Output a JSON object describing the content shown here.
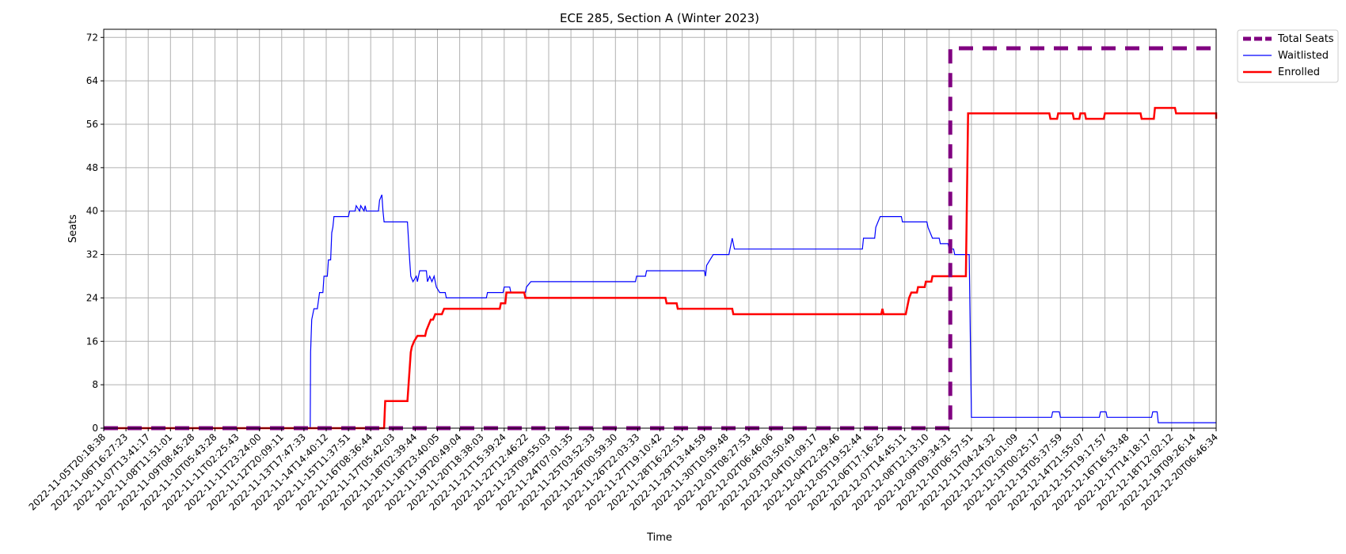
{
  "chart_data": {
    "type": "line",
    "title": "ECE 285, Section A (Winter 2023)",
    "xlabel": "Time",
    "ylabel": "Seats",
    "ylim": [
      0,
      73.5
    ],
    "yticks": [
      0,
      8,
      16,
      24,
      32,
      40,
      48,
      56,
      64,
      72
    ],
    "grid": true,
    "legend_position": "outside-top-right",
    "x_tick_labels": [
      "2022-11-05T20:18:38",
      "2022-11-06T16:27:23",
      "2022-11-07T13:41:17",
      "2022-11-08T11:51:01",
      "2022-11-09T08:45:28",
      "2022-11-10T05:43:28",
      "2022-11-11T02:25:43",
      "2022-11-11T23:24:00",
      "2022-11-12T20:09:11",
      "2022-11-13T17:47:33",
      "2022-11-14T14:40:12",
      "2022-11-15T11:37:51",
      "2022-11-16T08:36:44",
      "2022-11-17T05:42:03",
      "2022-11-18T02:39:44",
      "2022-11-18T23:40:05",
      "2022-11-19T20:49:04",
      "2022-11-20T18:38:03",
      "2022-11-21T15:39:24",
      "2022-11-22T12:46:22",
      "2022-11-23T09:55:03",
      "2022-11-24T07:01:35",
      "2022-11-25T03:52:33",
      "2022-11-26T00:59:30",
      "2022-11-26T22:03:33",
      "2022-11-27T19:10:42",
      "2022-11-28T16:22:51",
      "2022-11-29T13:44:59",
      "2022-11-30T10:59:48",
      "2022-12-01T08:27:53",
      "2022-12-02T06:46:06",
      "2022-12-03T03:50:49",
      "2022-12-04T01:09:17",
      "2022-12-04T22:29:46",
      "2022-12-05T19:52:44",
      "2022-12-06T17:16:25",
      "2022-12-07T14:45:11",
      "2022-12-08T12:13:10",
      "2022-12-09T09:34:31",
      "2022-12-10T06:57:51",
      "2022-12-11T04:24:32",
      "2022-12-12T02:01:09",
      "2022-12-13T00:25:17",
      "2022-12-13T05:37:59",
      "2022-12-14T21:55:07",
      "2022-12-15T19:17:57",
      "2022-12-16T16:53:48",
      "2022-12-17T14:18:17",
      "2022-12-18T12:02:12",
      "2022-12-19T09:26:14",
      "2022-12-20T06:46:34"
    ],
    "x_range": [
      0,
      50
    ],
    "series": [
      {
        "name": "Total Seats",
        "color": "#800080",
        "style": "dashed",
        "points": [
          [
            0,
            0
          ],
          [
            38.05,
            0
          ],
          [
            38.05,
            70
          ],
          [
            50,
            70
          ]
        ]
      },
      {
        "name": "Waitlisted",
        "color": "#0000ff",
        "style": "solid",
        "points": [
          [
            0,
            0
          ],
          [
            9.28,
            0
          ],
          [
            9.3,
            14
          ],
          [
            9.35,
            20
          ],
          [
            9.45,
            22
          ],
          [
            9.6,
            22
          ],
          [
            9.7,
            25
          ],
          [
            9.85,
            25
          ],
          [
            9.9,
            28
          ],
          [
            10.05,
            28
          ],
          [
            10.1,
            31
          ],
          [
            10.2,
            31
          ],
          [
            10.25,
            36
          ],
          [
            10.3,
            37
          ],
          [
            10.35,
            39
          ],
          [
            11.0,
            39
          ],
          [
            11.05,
            40
          ],
          [
            11.3,
            40
          ],
          [
            11.35,
            41
          ],
          [
            11.5,
            40
          ],
          [
            11.55,
            41
          ],
          [
            11.7,
            40
          ],
          [
            11.75,
            41
          ],
          [
            11.8,
            40
          ],
          [
            12.35,
            40
          ],
          [
            12.4,
            42
          ],
          [
            12.5,
            43
          ],
          [
            12.55,
            40
          ],
          [
            12.6,
            38
          ],
          [
            13.65,
            38
          ],
          [
            13.75,
            31
          ],
          [
            13.8,
            28
          ],
          [
            13.9,
            27
          ],
          [
            14.05,
            28
          ],
          [
            14.1,
            27
          ],
          [
            14.2,
            29
          ],
          [
            14.5,
            29
          ],
          [
            14.55,
            27
          ],
          [
            14.65,
            28
          ],
          [
            14.75,
            27
          ],
          [
            14.85,
            28
          ],
          [
            14.95,
            26
          ],
          [
            15.1,
            25
          ],
          [
            15.35,
            25
          ],
          [
            15.4,
            24
          ],
          [
            17.2,
            24
          ],
          [
            17.25,
            25
          ],
          [
            17.95,
            25
          ],
          [
            18.0,
            26
          ],
          [
            18.25,
            26
          ],
          [
            18.3,
            25
          ],
          [
            18.95,
            25
          ],
          [
            19.0,
            26
          ],
          [
            19.2,
            27
          ],
          [
            23.9,
            27
          ],
          [
            23.95,
            28
          ],
          [
            24.35,
            28
          ],
          [
            24.4,
            29
          ],
          [
            27.0,
            29
          ],
          [
            27.05,
            28
          ],
          [
            27.1,
            30
          ],
          [
            27.25,
            31
          ],
          [
            27.4,
            32
          ],
          [
            28.1,
            32
          ],
          [
            28.2,
            34
          ],
          [
            28.25,
            35
          ],
          [
            28.35,
            33
          ],
          [
            34.1,
            33
          ],
          [
            34.15,
            35
          ],
          [
            34.65,
            35
          ],
          [
            34.7,
            37
          ],
          [
            34.8,
            38
          ],
          [
            34.9,
            39
          ],
          [
            35.85,
            39
          ],
          [
            35.9,
            38
          ],
          [
            37.0,
            38
          ],
          [
            37.05,
            37
          ],
          [
            37.15,
            36
          ],
          [
            37.25,
            35
          ],
          [
            37.55,
            35
          ],
          [
            37.6,
            34
          ],
          [
            37.95,
            34
          ],
          [
            38.0,
            33
          ],
          [
            38.2,
            33
          ],
          [
            38.25,
            32
          ],
          [
            38.9,
            32
          ],
          [
            39.0,
            2
          ],
          [
            42.6,
            2
          ],
          [
            42.65,
            3
          ],
          [
            42.95,
            3
          ],
          [
            43.0,
            2
          ],
          [
            44.75,
            2
          ],
          [
            44.8,
            3
          ],
          [
            45.05,
            3
          ],
          [
            45.1,
            2
          ],
          [
            47.1,
            2
          ],
          [
            47.15,
            3
          ],
          [
            47.35,
            3
          ],
          [
            47.4,
            1
          ],
          [
            50,
            1
          ]
        ]
      },
      {
        "name": "Enrolled",
        "color": "#ff0000",
        "style": "solid",
        "points": [
          [
            0,
            0
          ],
          [
            12.6,
            0
          ],
          [
            12.65,
            5
          ],
          [
            13.65,
            5
          ],
          [
            13.75,
            11
          ],
          [
            13.8,
            14
          ],
          [
            13.85,
            15
          ],
          [
            13.95,
            16
          ],
          [
            14.1,
            17
          ],
          [
            14.45,
            17
          ],
          [
            14.5,
            18
          ],
          [
            14.6,
            19
          ],
          [
            14.7,
            20
          ],
          [
            14.8,
            20
          ],
          [
            14.9,
            21
          ],
          [
            15.2,
            21
          ],
          [
            15.3,
            22
          ],
          [
            17.8,
            22
          ],
          [
            17.85,
            23
          ],
          [
            18.05,
            23
          ],
          [
            18.1,
            25
          ],
          [
            18.9,
            25
          ],
          [
            18.95,
            24
          ],
          [
            25.25,
            24
          ],
          [
            25.3,
            23
          ],
          [
            25.75,
            23
          ],
          [
            25.8,
            22
          ],
          [
            28.25,
            22
          ],
          [
            28.3,
            21
          ],
          [
            34.95,
            21
          ],
          [
            35.0,
            22
          ],
          [
            35.05,
            21
          ],
          [
            36.05,
            21
          ],
          [
            36.1,
            22
          ],
          [
            36.2,
            24
          ],
          [
            36.3,
            25
          ],
          [
            36.55,
            25
          ],
          [
            36.6,
            26
          ],
          [
            36.9,
            26
          ],
          [
            36.95,
            27
          ],
          [
            37.2,
            27
          ],
          [
            37.25,
            28
          ],
          [
            38.75,
            28
          ],
          [
            38.85,
            58
          ],
          [
            42.5,
            58
          ],
          [
            42.55,
            57
          ],
          [
            42.85,
            57
          ],
          [
            42.9,
            58
          ],
          [
            43.55,
            58
          ],
          [
            43.6,
            57
          ],
          [
            43.85,
            57
          ],
          [
            43.9,
            58
          ],
          [
            44.1,
            58
          ],
          [
            44.15,
            57
          ],
          [
            44.95,
            57
          ],
          [
            45.0,
            58
          ],
          [
            46.6,
            58
          ],
          [
            46.65,
            57
          ],
          [
            47.2,
            57
          ],
          [
            47.25,
            59
          ],
          [
            48.15,
            59
          ],
          [
            48.2,
            58
          ],
          [
            50.0,
            58
          ],
          [
            50.0,
            57
          ]
        ]
      }
    ]
  }
}
